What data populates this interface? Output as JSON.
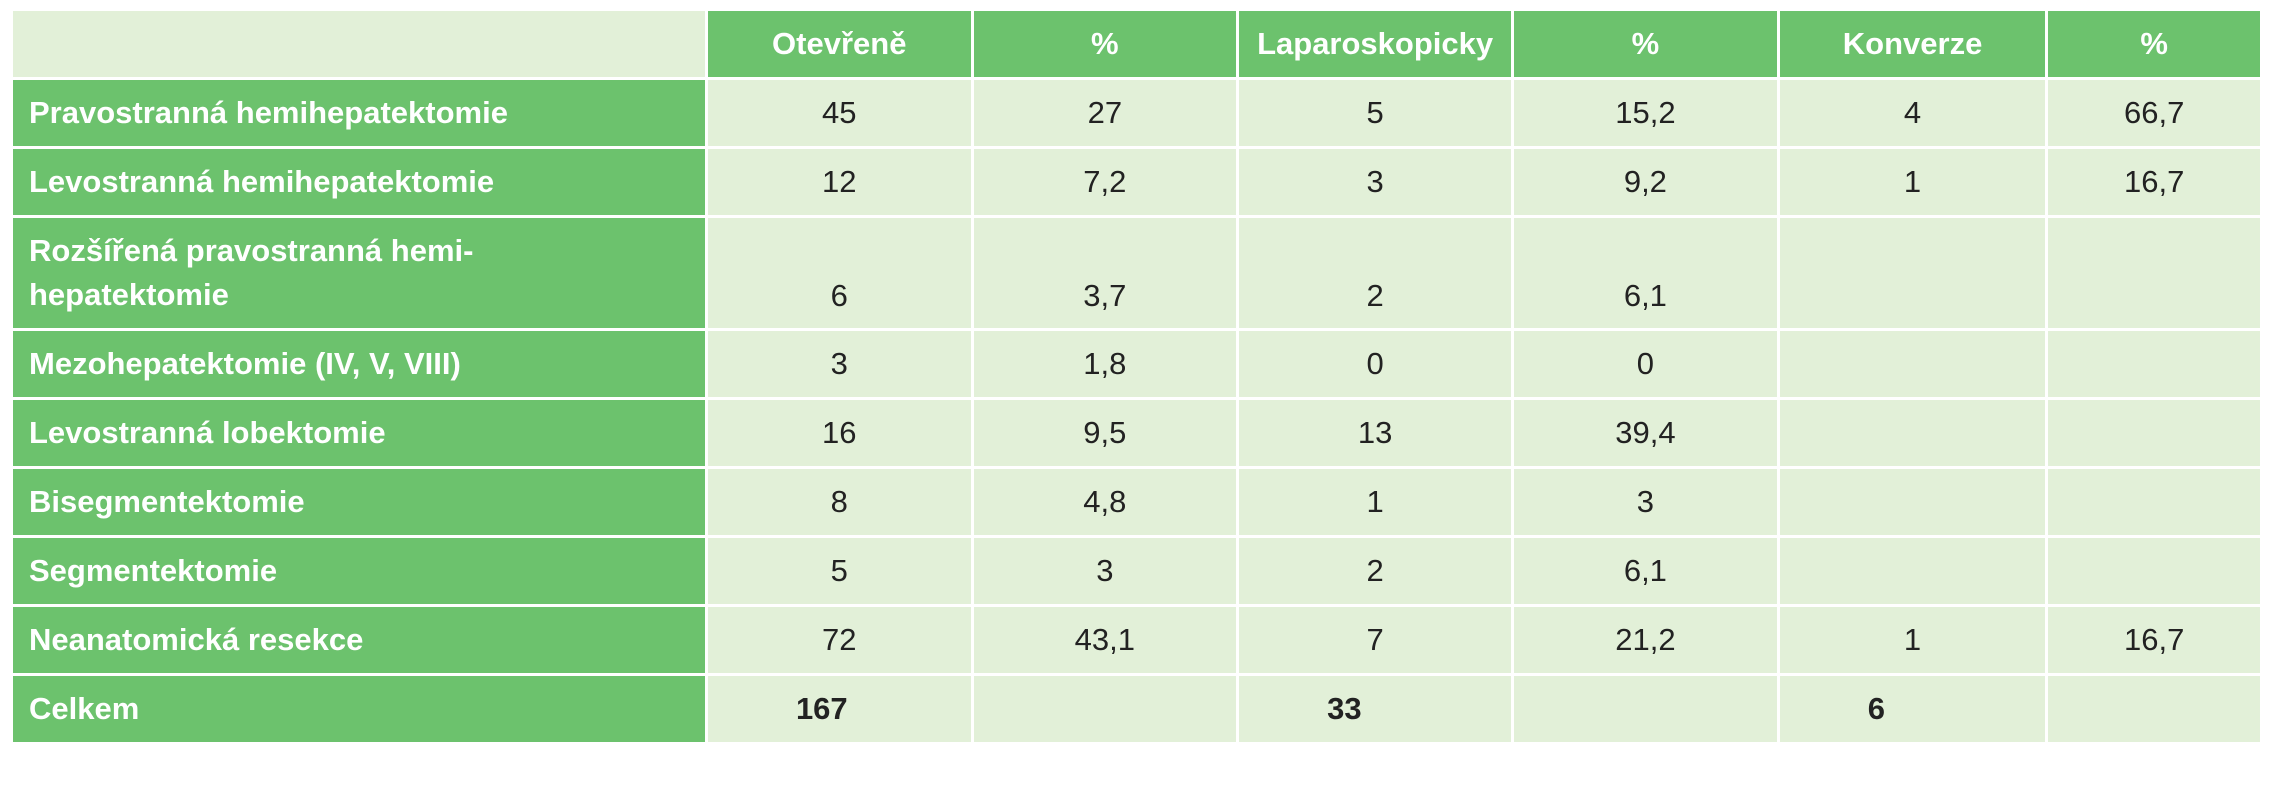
{
  "table": {
    "headers": [
      "",
      "Otevřeně",
      "%",
      "Laparoskopicky",
      "%",
      "Konverze",
      "%"
    ],
    "rows": [
      {
        "label": "Pravostranná hemihepatektomie",
        "cells": [
          "45",
          "27",
          "5",
          "15,2",
          "4",
          "66,7"
        ]
      },
      {
        "label": "Levostranná hemihepatektomie",
        "cells": [
          "12",
          "7,2",
          "3",
          "9,2",
          "1",
          "16,7"
        ]
      },
      {
        "label": "Rozšířená pravostranná hemi-hepatektomie",
        "label_lines": [
          "Rozšířená pravostranná hemi-",
          "hepatektomie"
        ],
        "cells": [
          "6",
          "3,7",
          "2",
          "6,1",
          "",
          ""
        ]
      },
      {
        "label": "Mezohepatektomie (IV, V, VIII)",
        "cells": [
          "3",
          "1,8",
          "0",
          "0",
          "",
          ""
        ]
      },
      {
        "label": "Levostranná lobektomie",
        "cells": [
          "16",
          "9,5",
          "13",
          "39,4",
          "",
          ""
        ]
      },
      {
        "label": "Bisegmentektomie",
        "cells": [
          "8",
          "4,8",
          "1",
          "3",
          "",
          ""
        ]
      },
      {
        "label": "Segmentektomie",
        "cells": [
          "5",
          "3",
          "2",
          "6,1",
          "",
          ""
        ]
      },
      {
        "label": "Neanatomická resekce",
        "cells": [
          "72",
          "43,1",
          "7",
          "21,2",
          "1",
          "16,7"
        ]
      }
    ],
    "total": {
      "label": "Celkem",
      "cells": [
        "167",
        "",
        "33",
        "",
        "6",
        ""
      ]
    },
    "colors": {
      "header_green": "#6cc26d",
      "cell_bg": "#e2f0d8",
      "header_text": "#ffffff",
      "body_text": "#222222"
    }
  }
}
